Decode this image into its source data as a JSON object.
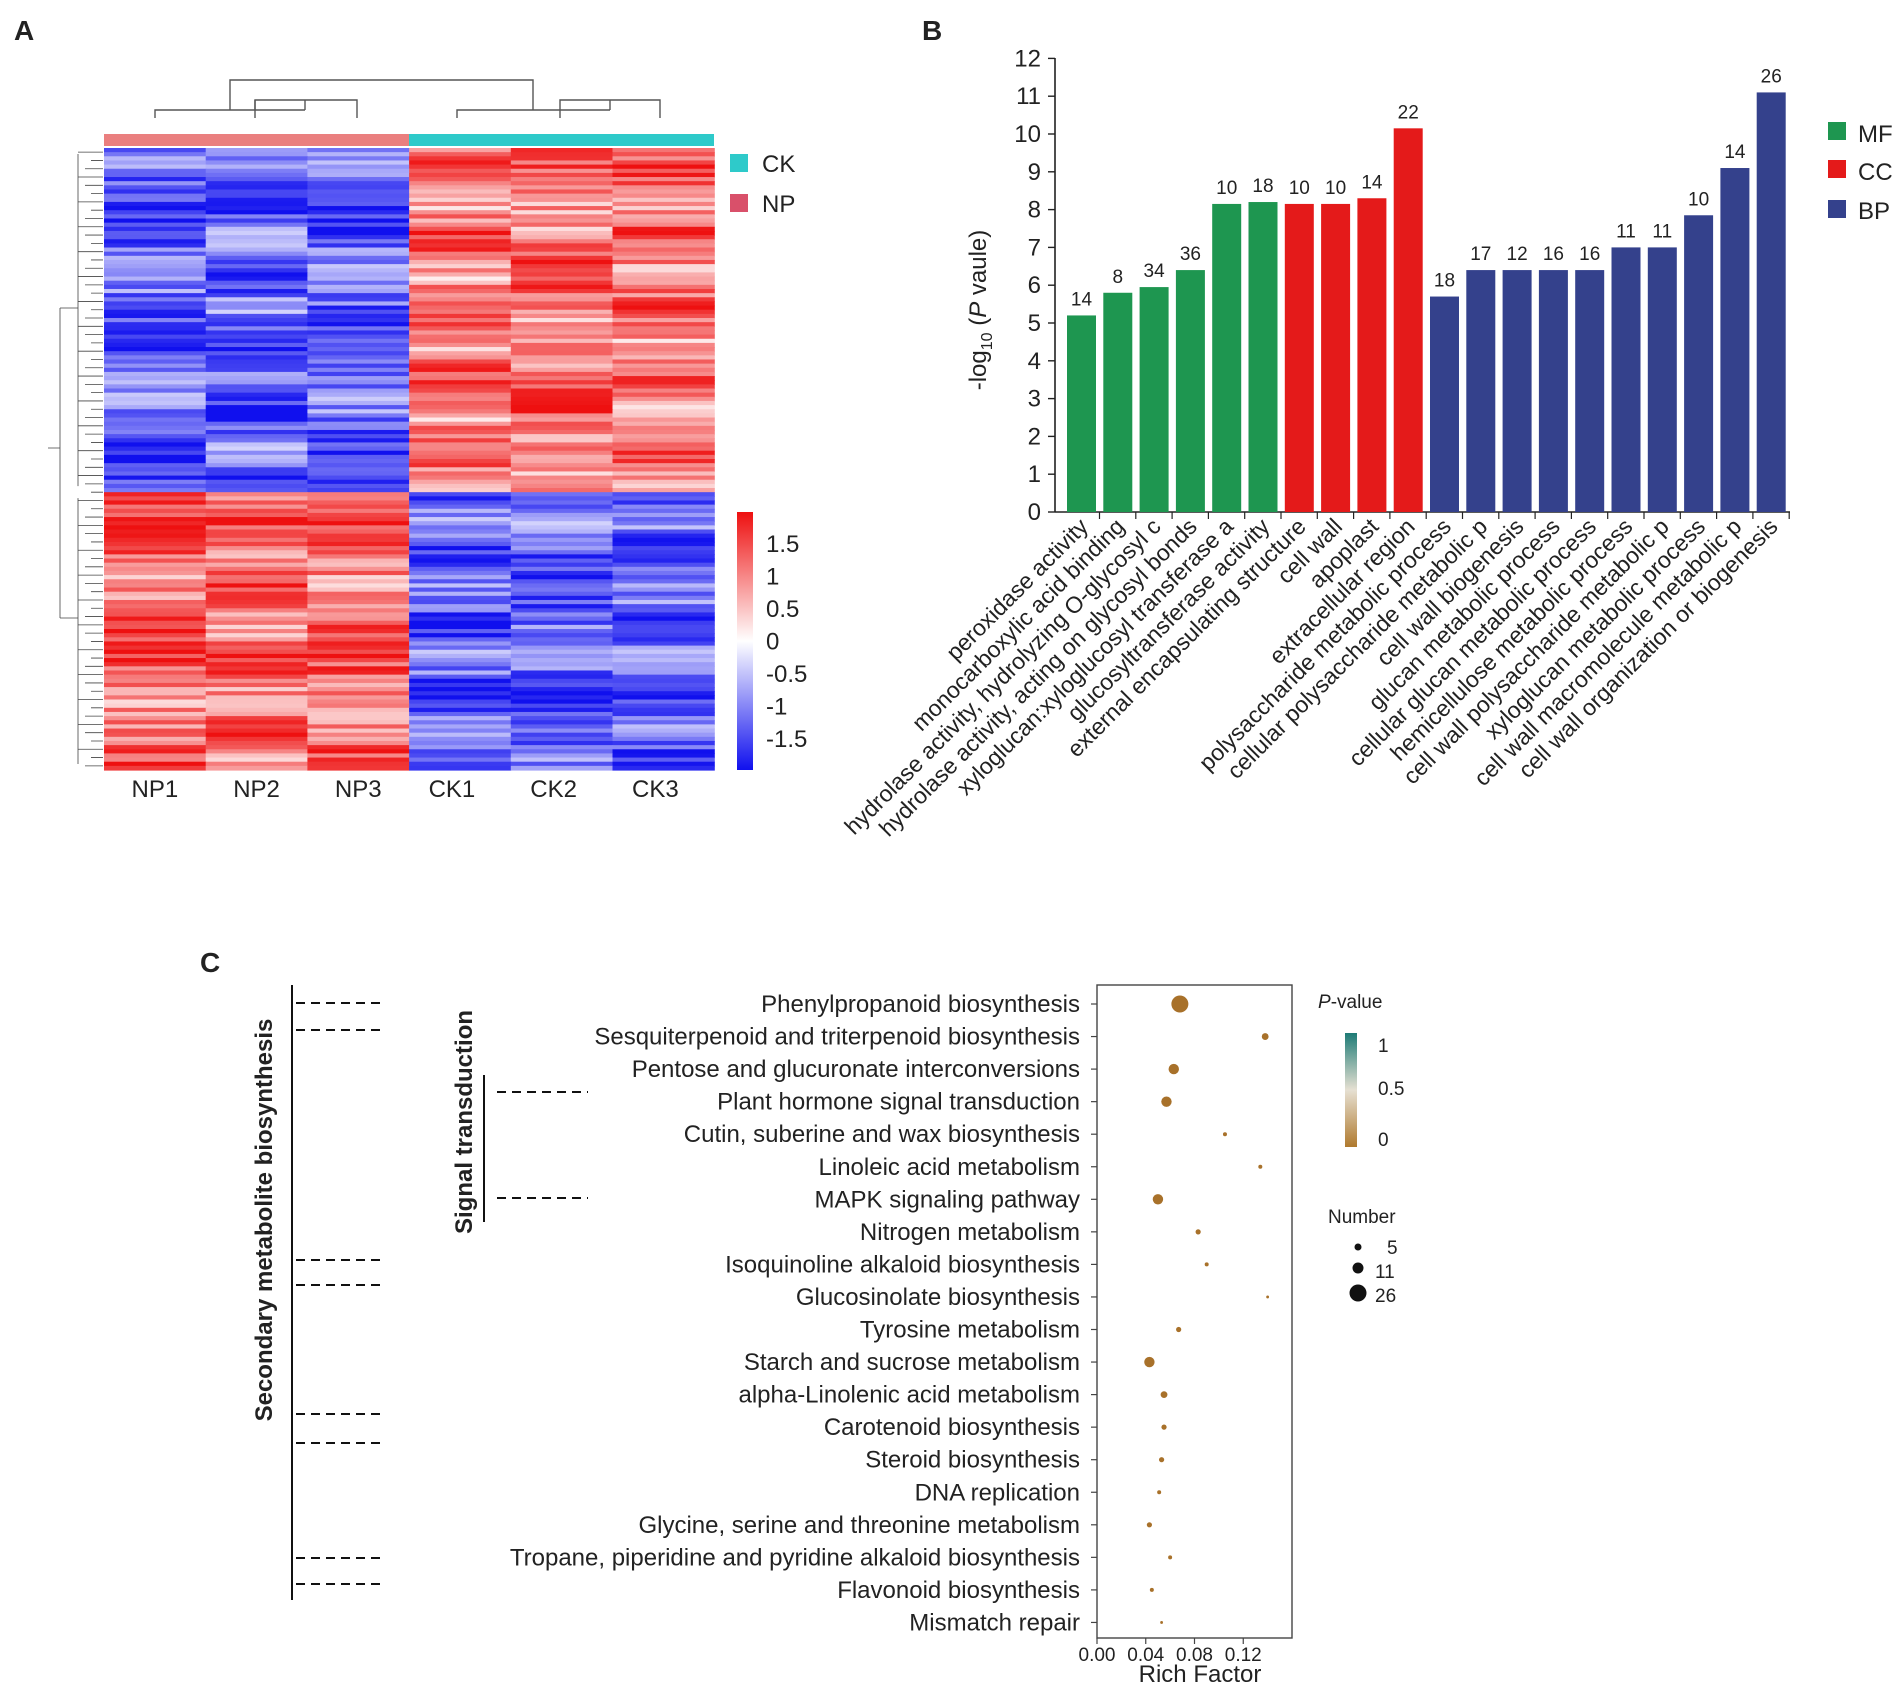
{
  "panels": {
    "a": "A",
    "b": "B",
    "c": "C"
  },
  "chart_data": [
    {
      "type": "heatmap",
      "columns": [
        "NP1",
        "NP2",
        "NP3",
        "CK1",
        "CK2",
        "CK3"
      ],
      "groups": [
        {
          "name": "CK",
          "color": "#2ECACA",
          "columns": [
            "CK1",
            "CK2",
            "CK3"
          ]
        },
        {
          "name": "NP",
          "color": "#EA7F7F",
          "columns": [
            "NP1",
            "NP2",
            "NP3"
          ]
        }
      ],
      "color_scale": {
        "min": -1.5,
        "max": 1.5,
        "low": "#1010ee",
        "mid": "#ffffff",
        "high": "#ee1010",
        "ticks": [
          "1.5",
          "1",
          "0.5",
          "0",
          "-0.5",
          "-1",
          "-1.5"
        ]
      },
      "pattern": "upper block: NP low, CK high; lower block: NP high, CK low"
    },
    {
      "type": "bar",
      "ylabel_prefix": "-log",
      "ylabel_sub": "10",
      "ylabel_open": " (",
      "ylabel_italic": "P",
      "ylabel_rest": " vaule)",
      "ylim": [
        0,
        12
      ],
      "yticks": [
        "0",
        "1",
        "2",
        "3",
        "4",
        "5",
        "6",
        "7",
        "8",
        "9",
        "10",
        "11",
        "12"
      ],
      "legend": [
        {
          "name": "MF",
          "color": "#1E9650"
        },
        {
          "name": "CC",
          "color": "#E41A1A"
        },
        {
          "name": "BP",
          "color": "#34418C"
        }
      ],
      "categories": [
        "peroxidase activity",
        "monocarboxylic acid binding",
        "hydrolase activity, hydrolyzing O-glycosyl c",
        "hydrolase activity, acting on glycosyl bonds",
        "xyloglucan:xyloglucosyl transferase a",
        "glucosyltransferase activity",
        "external encapsulating structure",
        "cell wall",
        "apoplast",
        "extracellular region",
        "polysaccharide metabolic process",
        "cellular polysaccharide metabolic p",
        "cell wall biogenesis",
        "glucan metabolic process",
        "cellular glucan metabolic process",
        "hemicellulose metabolic process",
        "cell wall polysaccharide metabolic p",
        "xyloglucan metabolic process",
        "cell wall macromolecule metabolic p",
        "cell wall organization or biogenesis"
      ],
      "groups": [
        "MF",
        "MF",
        "MF",
        "MF",
        "MF",
        "MF",
        "CC",
        "CC",
        "CC",
        "CC",
        "BP",
        "BP",
        "BP",
        "BP",
        "BP",
        "BP",
        "BP",
        "BP",
        "BP",
        "BP"
      ],
      "values": [
        5.2,
        5.8,
        5.95,
        6.4,
        8.15,
        8.2,
        8.15,
        8.15,
        8.3,
        10.15,
        5.7,
        6.4,
        6.4,
        6.4,
        6.4,
        7.0,
        7.0,
        7.85,
        9.1,
        11.1
      ],
      "labels": [
        "14",
        "8",
        "34",
        "36",
        "10",
        "18",
        "10",
        "10",
        "14",
        "22",
        "18",
        "17",
        "12",
        "16",
        "16",
        "11",
        "11",
        "10",
        "14",
        "26"
      ]
    },
    {
      "type": "scatter",
      "xlabel": "Rich Factor",
      "xlim": [
        0,
        0.16
      ],
      "xticks": [
        "0.00",
        "0.04",
        "0.08",
        "0.12"
      ],
      "xtick_values": [
        0,
        0.04,
        0.08,
        0.12
      ],
      "pathways": [
        "Phenylpropanoid biosynthesis",
        "Sesquiterpenoid and triterpenoid biosynthesis",
        "Pentose and glucuronate interconversions",
        "Plant hormone signal transduction",
        "Cutin, suberine and wax biosynthesis",
        "Linoleic acid metabolism",
        "MAPK signaling pathway",
        "Nitrogen metabolism",
        "Isoquinoline alkaloid biosynthesis",
        "Glucosinolate biosynthesis",
        "Tyrosine metabolism",
        "Starch and sucrose metabolism",
        "alpha-Linolenic acid metabolism",
        "Carotenoid biosynthesis",
        "Steroid biosynthesis",
        "DNA replication",
        "Glycine, serine and threonine metabolism",
        "Tropane, piperidine and pyridine alkaloid biosynthesis",
        "Flavonoid biosynthesis",
        "Mismatch repair"
      ],
      "rich_factor": [
        0.068,
        0.138,
        0.063,
        0.057,
        0.105,
        0.134,
        0.05,
        0.083,
        0.09,
        0.14,
        0.067,
        0.043,
        0.055,
        0.055,
        0.053,
        0.051,
        0.043,
        0.06,
        0.045,
        0.053
      ],
      "number": [
        26,
        5,
        11,
        11,
        3,
        3,
        11,
        4,
        3,
        2,
        4,
        11,
        5,
        4,
        4,
        3,
        4,
        3,
        3,
        2
      ],
      "size_legend": {
        "title": "Number",
        "values": [
          "5",
          "11",
          "26"
        ]
      },
      "color_legend": {
        "title_italic": "P",
        "title_rest": "-value",
        "ticks": [
          "1",
          "0.5",
          "0"
        ],
        "low": "#B07A2E",
        "mid": "#E6E0D2",
        "high": "#1E7B76"
      },
      "side_labels": {
        "left": "Secondary metabolite biosynthesis",
        "inner": "Signal transduction"
      }
    }
  ]
}
